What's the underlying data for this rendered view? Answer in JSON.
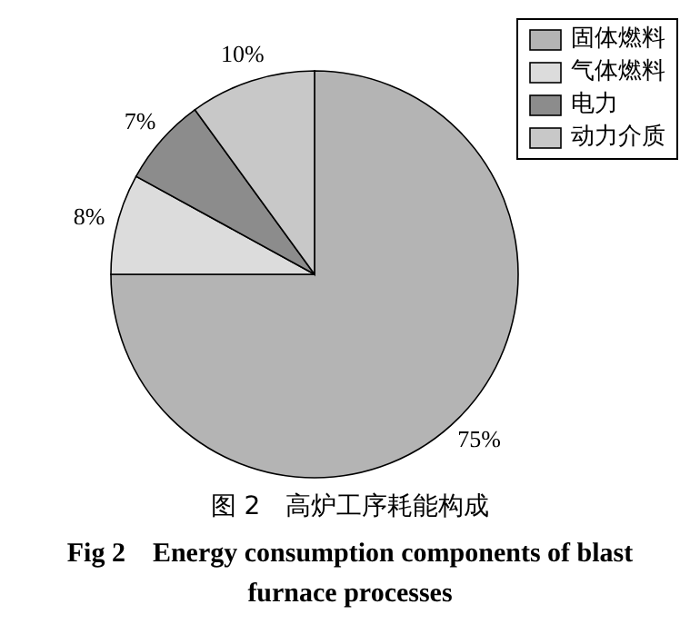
{
  "chart_data": {
    "type": "pie",
    "title": "图 2　高炉工序耗能构成",
    "subtitle": "Fig 2　Energy consumption components of blast furnace processes",
    "categories": [
      "固体燃料",
      "气体燃料",
      "电力",
      "动力介质"
    ],
    "values": [
      75,
      8,
      7,
      10
    ],
    "colors": [
      "#b4b4b4",
      "#dcdcdc",
      "#8c8c8c",
      "#c8c8c8"
    ],
    "value_labels": [
      "75%",
      "8%",
      "7%",
      "10%"
    ],
    "legend": "top right"
  }
}
